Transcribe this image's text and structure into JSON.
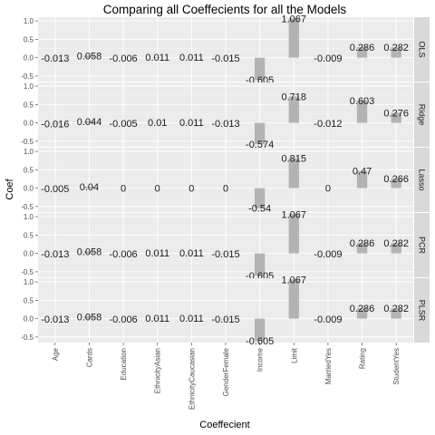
{
  "chart_data": {
    "type": "bar",
    "title": "Comparing all Coeffecients for all the Models",
    "xlabel": "Coeffecient",
    "ylabel": "Coef",
    "categories": [
      "Age",
      "Cards",
      "Education",
      "EthnicityAsian",
      "EthnicityCaucasian",
      "GenderFemale",
      "Income",
      "Limit",
      "MarriedYes",
      "Rating",
      "StudentYes"
    ],
    "ylim": [
      -0.65,
      1.1
    ],
    "y_ticks": [
      "-0.5",
      "0.0",
      "0.5",
      "1.0"
    ],
    "grid": true,
    "facets": [
      {
        "name": "OLS",
        "values": [
          -0.013,
          0.058,
          -0.006,
          0.011,
          0.011,
          -0.015,
          -0.605,
          1.067,
          -0.009,
          0.286,
          0.282
        ],
        "labels": [
          "-0.013",
          "0.058",
          "-0.006",
          "0.011",
          "0.011",
          "-0.015",
          "-0.605",
          "1.067",
          "-0.009",
          "0.286",
          "0.282"
        ]
      },
      {
        "name": "Ridge",
        "values": [
          -0.016,
          0.044,
          -0.005,
          0.01,
          0.011,
          -0.013,
          -0.574,
          0.718,
          -0.012,
          0.603,
          0.276
        ],
        "labels": [
          "-0.016",
          "0.044",
          "-0.005",
          "0.01",
          "0.011",
          "-0.013",
          "-0.574",
          "0.718",
          "-0.012",
          "0.603",
          "0.276"
        ]
      },
      {
        "name": "Lasso",
        "values": [
          -0.005,
          0.04,
          0,
          0,
          0,
          0,
          -0.54,
          0.815,
          0,
          0.47,
          0.266
        ],
        "labels": [
          "-0.005",
          "0.04",
          "0",
          "0",
          "0",
          "0",
          "-0.54",
          "0.815",
          "0",
          "0.47",
          "0.266"
        ]
      },
      {
        "name": "PCR",
        "values": [
          -0.013,
          0.058,
          -0.006,
          0.011,
          0.011,
          -0.015,
          -0.605,
          1.067,
          -0.009,
          0.286,
          0.282
        ],
        "labels": [
          "-0.013",
          "0.058",
          "-0.006",
          "0.011",
          "0.011",
          "-0.015",
          "-0.605",
          "1.067",
          "-0.009",
          "0.286",
          "0.282"
        ]
      },
      {
        "name": "PLSR",
        "values": [
          -0.013,
          0.058,
          -0.006,
          0.011,
          0.011,
          -0.015,
          -0.605,
          1.067,
          -0.009,
          0.286,
          0.282
        ],
        "labels": [
          "-0.013",
          "0.058",
          "-0.006",
          "0.011",
          "0.011",
          "-0.015",
          "-0.605",
          "1.067",
          "-0.009",
          "0.286",
          "0.282"
        ]
      }
    ],
    "colors": {
      "panel_background": "#ebebeb",
      "strip_background": "#d9d9d9",
      "grid_major": "#ffffff",
      "grid_minor": "#f2f2f2",
      "bar_fill": "#b3b3b3"
    }
  }
}
